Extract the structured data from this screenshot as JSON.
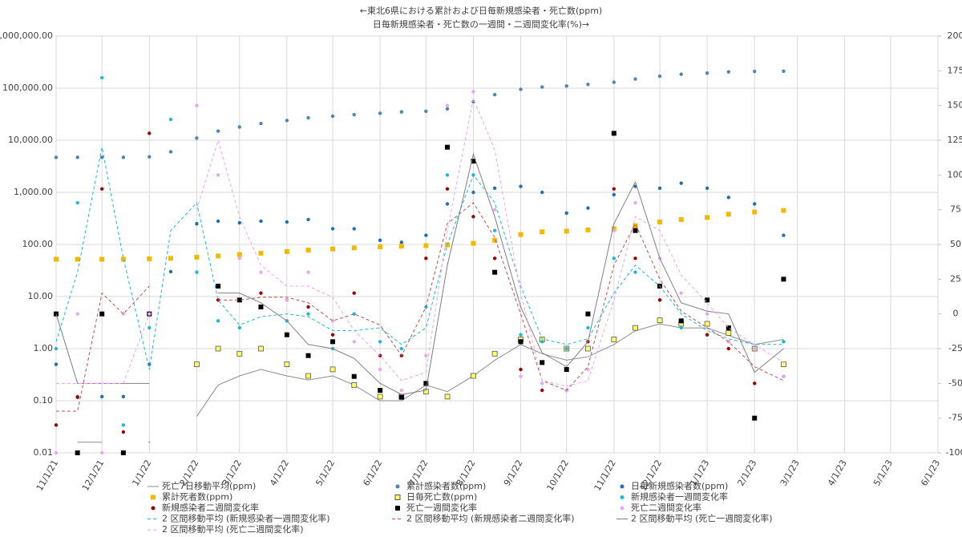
{
  "chart_data": {
    "type": "scatter",
    "title": "←東北6県における累計および日毎新規感染者・死亡数(ppm)",
    "subtitle": "日毎新規感染者・死亡数の一週間・二週間変化率(%)→",
    "log_y": true,
    "grid": true,
    "legend": "bottom",
    "xlim": [
      "11/1/21",
      "6/1/23"
    ],
    "xticks": [
      "11/1/21",
      "12/1/21",
      "1/1/22",
      "2/1/22",
      "3/1/22",
      "4/1/22",
      "5/1/22",
      "6/1/22",
      "7/1/22",
      "8/1/22",
      "9/1/22",
      "10/1/22",
      "11/1/22",
      "12/1/22",
      "1/1/23",
      "2/1/23",
      "3/1/23",
      "4/1/23",
      "5/1/23",
      "6/1/23"
    ],
    "ylim": [
      0.01,
      1000000
    ],
    "yticks": [
      {
        "value": 0.01,
        "label": "0.01"
      },
      {
        "value": 0.1,
        "label": "0.10"
      },
      {
        "value": 1,
        "label": "1.00"
      },
      {
        "value": 10,
        "label": "10.00"
      },
      {
        "value": 100,
        "label": "100.00"
      },
      {
        "value": 1000,
        "label": "1,000.00"
      },
      {
        "value": 10000,
        "label": "10,000.00"
      },
      {
        "value": 100000,
        "label": "100,000.00"
      },
      {
        "value": 1000000,
        "label": "1,000,000.00"
      }
    ],
    "y2lim": [
      -100,
      200
    ],
    "y2ticks": [
      -100,
      -75,
      -50,
      -25,
      0,
      25,
      50,
      75,
      100,
      125,
      150,
      175,
      200
    ],
    "x": [
      "11/1/21",
      "11/15/21",
      "12/1/21",
      "12/15/21",
      "1/1/22",
      "1/15/22",
      "2/1/22",
      "2/15/22",
      "3/1/22",
      "3/15/22",
      "4/1/22",
      "4/15/22",
      "5/1/22",
      "5/15/22",
      "6/1/22",
      "6/15/22",
      "7/1/22",
      "7/15/22",
      "8/1/22",
      "8/15/22",
      "9/1/22",
      "9/15/22",
      "10/1/22",
      "10/15/22",
      "11/1/22",
      "11/15/22",
      "12/1/22",
      "12/15/22",
      "1/1/23",
      "1/15/23",
      "2/1/23",
      "2/20/23"
    ],
    "series": [
      {
        "name": "死亡7日移動平均(ppm)",
        "color": "#8c8c8c",
        "marker": "line",
        "values": [
          null,
          0.016,
          0.016,
          null,
          0.016,
          null,
          0.05,
          0.2,
          0.3,
          0.4,
          0.3,
          0.25,
          0.3,
          0.2,
          0.1,
          0.1,
          0.2,
          0.15,
          0.3,
          0.6,
          1.2,
          0.8,
          0.6,
          0.7,
          1.2,
          2.2,
          3,
          2.5,
          2.5,
          1.8,
          1.2,
          1.5
        ]
      },
      {
        "name": "累計感染者数(ppm)",
        "color": "#4a86b8",
        "marker": "circle",
        "values": [
          4700,
          4700,
          4700,
          4700,
          4800,
          6000,
          11000,
          15000,
          18000,
          21000,
          24000,
          27000,
          29000,
          31000,
          33000,
          35000,
          36000,
          40000,
          55000,
          75000,
          95000,
          105000,
          110000,
          118000,
          130000,
          150000,
          170000,
          185000,
          195000,
          205000,
          210000,
          212000
        ]
      },
      {
        "name": "日毎新規感染者数(ppm)",
        "color": "#1f6fb5",
        "marker": "circle",
        "values": [
          0.5,
          0.12,
          0.12,
          0.12,
          0.5,
          30,
          250,
          280,
          260,
          280,
          270,
          300,
          200,
          200,
          120,
          110,
          150,
          600,
          1000,
          1200,
          1300,
          1000,
          400,
          500,
          900,
          1300,
          1200,
          1500,
          1200,
          800,
          600,
          150
        ]
      },
      {
        "name": "累計死者数(ppm)",
        "color": "#f5b800",
        "marker": "square",
        "values": [
          52,
          52,
          52,
          52,
          53,
          54,
          57,
          60,
          64,
          68,
          73,
          78,
          82,
          86,
          90,
          93,
          95,
          98,
          105,
          120,
          155,
          175,
          180,
          190,
          200,
          230,
          270,
          300,
          330,
          380,
          420,
          450
        ]
      },
      {
        "name": "日毎死亡数(ppm)",
        "color": "#ffff66",
        "marker": "square-outline",
        "values": [
          null,
          null,
          null,
          null,
          null,
          null,
          0.5,
          1,
          0.8,
          1,
          0.5,
          0.3,
          0.4,
          0.2,
          0.12,
          0.12,
          0.15,
          0.12,
          0.3,
          0.8,
          1.5,
          1.5,
          1,
          1,
          1.5,
          2.5,
          3.5,
          3,
          3,
          2,
          1,
          0.5
        ]
      },
      {
        "name": "新規感染者一週間変化率",
        "color": "#1fb8d8",
        "marker": "circle",
        "axis": "y2",
        "values": [
          -25,
          80,
          170,
          -80,
          -10,
          140,
          30,
          -5,
          -10,
          5,
          -5,
          0,
          -25,
          0,
          -20,
          -25,
          5,
          100,
          100,
          60,
          -15,
          -20,
          -25,
          -10,
          40,
          30,
          10,
          -10,
          -15,
          -20,
          -25,
          -20
        ]
      },
      {
        "name": "新規感染者二週間変化率",
        "color": "#a00000",
        "marker": "circle",
        "axis": "y2",
        "values": [
          -80,
          -60,
          90,
          -85,
          130,
          null,
          null,
          10,
          10,
          15,
          10,
          5,
          -15,
          15,
          -30,
          -30,
          40,
          90,
          70,
          40,
          -40,
          -55,
          -55,
          -20,
          90,
          40,
          10,
          -5,
          -15,
          -25,
          -50,
          -45
        ]
      },
      {
        "name": "死亡一週間変化率",
        "color": "#000000",
        "marker": "square",
        "axis": "y2",
        "values": [
          0,
          -100,
          0,
          -100,
          0,
          null,
          null,
          20,
          10,
          5,
          -15,
          -30,
          -20,
          -45,
          -55,
          -60,
          -50,
          120,
          110,
          30,
          -20,
          -35,
          -40,
          0,
          130,
          60,
          20,
          -5,
          10,
          -10,
          -75,
          25
        ]
      },
      {
        "name": "死亡二週間変化率",
        "color": "#e6a8f0",
        "marker": "circle",
        "axis": "y2",
        "values": [
          -100,
          0,
          -100,
          0,
          0,
          null,
          150,
          100,
          40,
          30,
          10,
          30,
          -5,
          -20,
          -40,
          -55,
          -30,
          150,
          160,
          75,
          -45,
          -50,
          -55,
          -40,
          60,
          80,
          40,
          15,
          0,
          -20,
          -25,
          -45
        ]
      },
      {
        "name": "2 区間移動平均 (新規感染者一週間変化率)",
        "color": "#1fb8d8",
        "marker": "dashed",
        "axis": "y2",
        "values": [
          -20,
          30,
          120,
          40,
          -40,
          60,
          80,
          10,
          -8,
          -2,
          0,
          -2,
          -12,
          -12,
          -10,
          -22,
          -10,
          50,
          100,
          80,
          20,
          -18,
          -22,
          -18,
          15,
          35,
          20,
          0,
          -12,
          -18,
          -22,
          -22
        ]
      },
      {
        "name": "2 区間移動平均 (新規感染者二週間変化率)",
        "color": "#c0504d",
        "marker": "dashed",
        "axis": "y2",
        "values": [
          -70,
          -70,
          15,
          0,
          20,
          null,
          null,
          10,
          10,
          12,
          12,
          8,
          -5,
          0,
          -8,
          -30,
          5,
          65,
          80,
          55,
          0,
          -48,
          -55,
          -38,
          35,
          65,
          25,
          2,
          -10,
          -20,
          -38,
          -48
        ]
      },
      {
        "name": "2 区間移動平均 (死亡一週間変化率)",
        "color": "#7f7f7f",
        "marker": "line",
        "axis": "y2",
        "values": [
          0,
          -50,
          -50,
          -50,
          -50,
          null,
          null,
          15,
          15,
          8,
          -5,
          -22,
          -25,
          -32,
          -50,
          -58,
          -55,
          35,
          115,
          70,
          5,
          -28,
          -38,
          -20,
          65,
          95,
          40,
          8,
          2,
          0,
          -42,
          -25
        ]
      },
      {
        "name": "2 区間移動平均 (死亡二週間変化率)",
        "color": "#e6a8f0",
        "marker": "dashed",
        "axis": "y2",
        "values": [
          -50,
          -50,
          -50,
          -50,
          0,
          null,
          75,
          125,
          70,
          35,
          20,
          20,
          12,
          -12,
          -30,
          -48,
          -42,
          60,
          155,
          118,
          15,
          -48,
          -52,
          -48,
          10,
          70,
          60,
          28,
          8,
          -10,
          -22,
          -35
        ]
      }
    ]
  }
}
